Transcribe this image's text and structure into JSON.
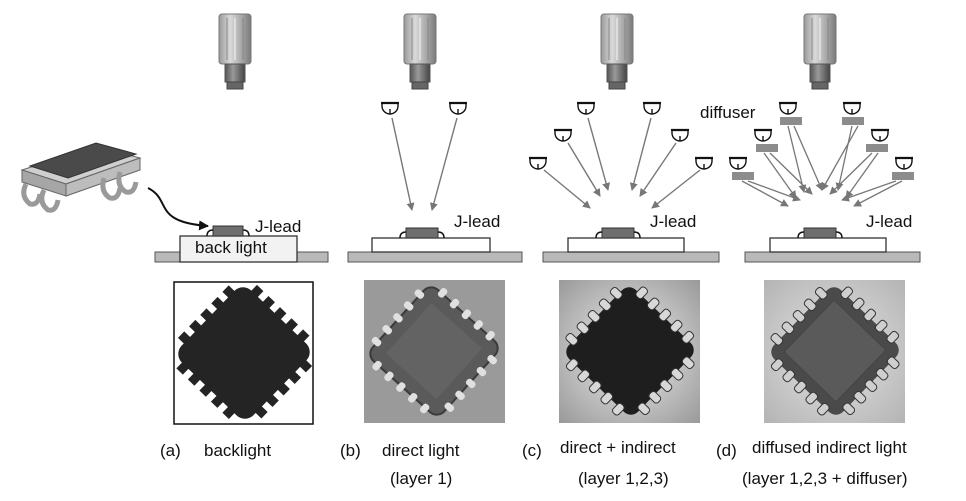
{
  "labels": {
    "j_lead": "J-lead",
    "back_light": "back light",
    "diffuser": "diffuser"
  },
  "panels": [
    {
      "letter": "(a)",
      "title": "backlight",
      "subtitle": ""
    },
    {
      "letter": "(b)",
      "title": "direct light",
      "subtitle": "(layer 1)"
    },
    {
      "letter": "(c)",
      "title": "direct + indirect",
      "subtitle": "(layer 1,2,3)"
    },
    {
      "letter": "(d)",
      "title": "diffused indirect light",
      "subtitle": "(layer 1,2,3 + diffuser)"
    }
  ],
  "colors": {
    "base": "#b9b9b9",
    "chip": "#6e6e6e",
    "arrow": "#777777",
    "diffuser": "#8c8c8c"
  }
}
